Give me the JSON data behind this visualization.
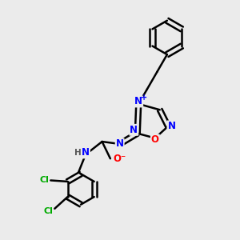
{
  "bg_color": "#ebebeb",
  "bond_color": "#000000",
  "bond_width": 1.8,
  "atom_colors": {
    "N": "#0000ff",
    "O": "#ff0000",
    "Cl": "#00aa00",
    "H": "#555555",
    "C": "#000000"
  },
  "font_size": 8.5
}
